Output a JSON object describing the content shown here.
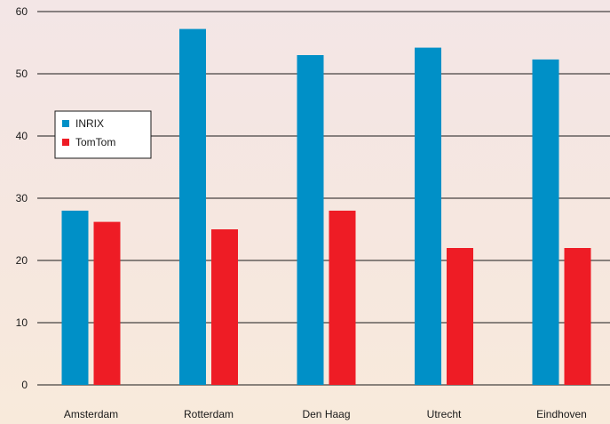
{
  "chart_data": {
    "type": "bar",
    "title": "",
    "xlabel": "",
    "ylabel": "",
    "ylim": [
      0,
      60
    ],
    "yticks": [
      0,
      10,
      20,
      30,
      40,
      50,
      60
    ],
    "grid": "horizontal",
    "legend_position": "left, upper-middle",
    "categories": [
      "Amsterdam",
      "Rotterdam",
      "Den Haag",
      "Utrecht",
      "Eindhoven"
    ],
    "series": [
      {
        "name": "INRIX",
        "color": "#0090c7",
        "values": [
          28,
          57.2,
          53,
          54.2,
          52.3
        ]
      },
      {
        "name": "TomTom",
        "color": "#ee1c25",
        "values": [
          26.2,
          25,
          28,
          22,
          22
        ]
      }
    ]
  }
}
